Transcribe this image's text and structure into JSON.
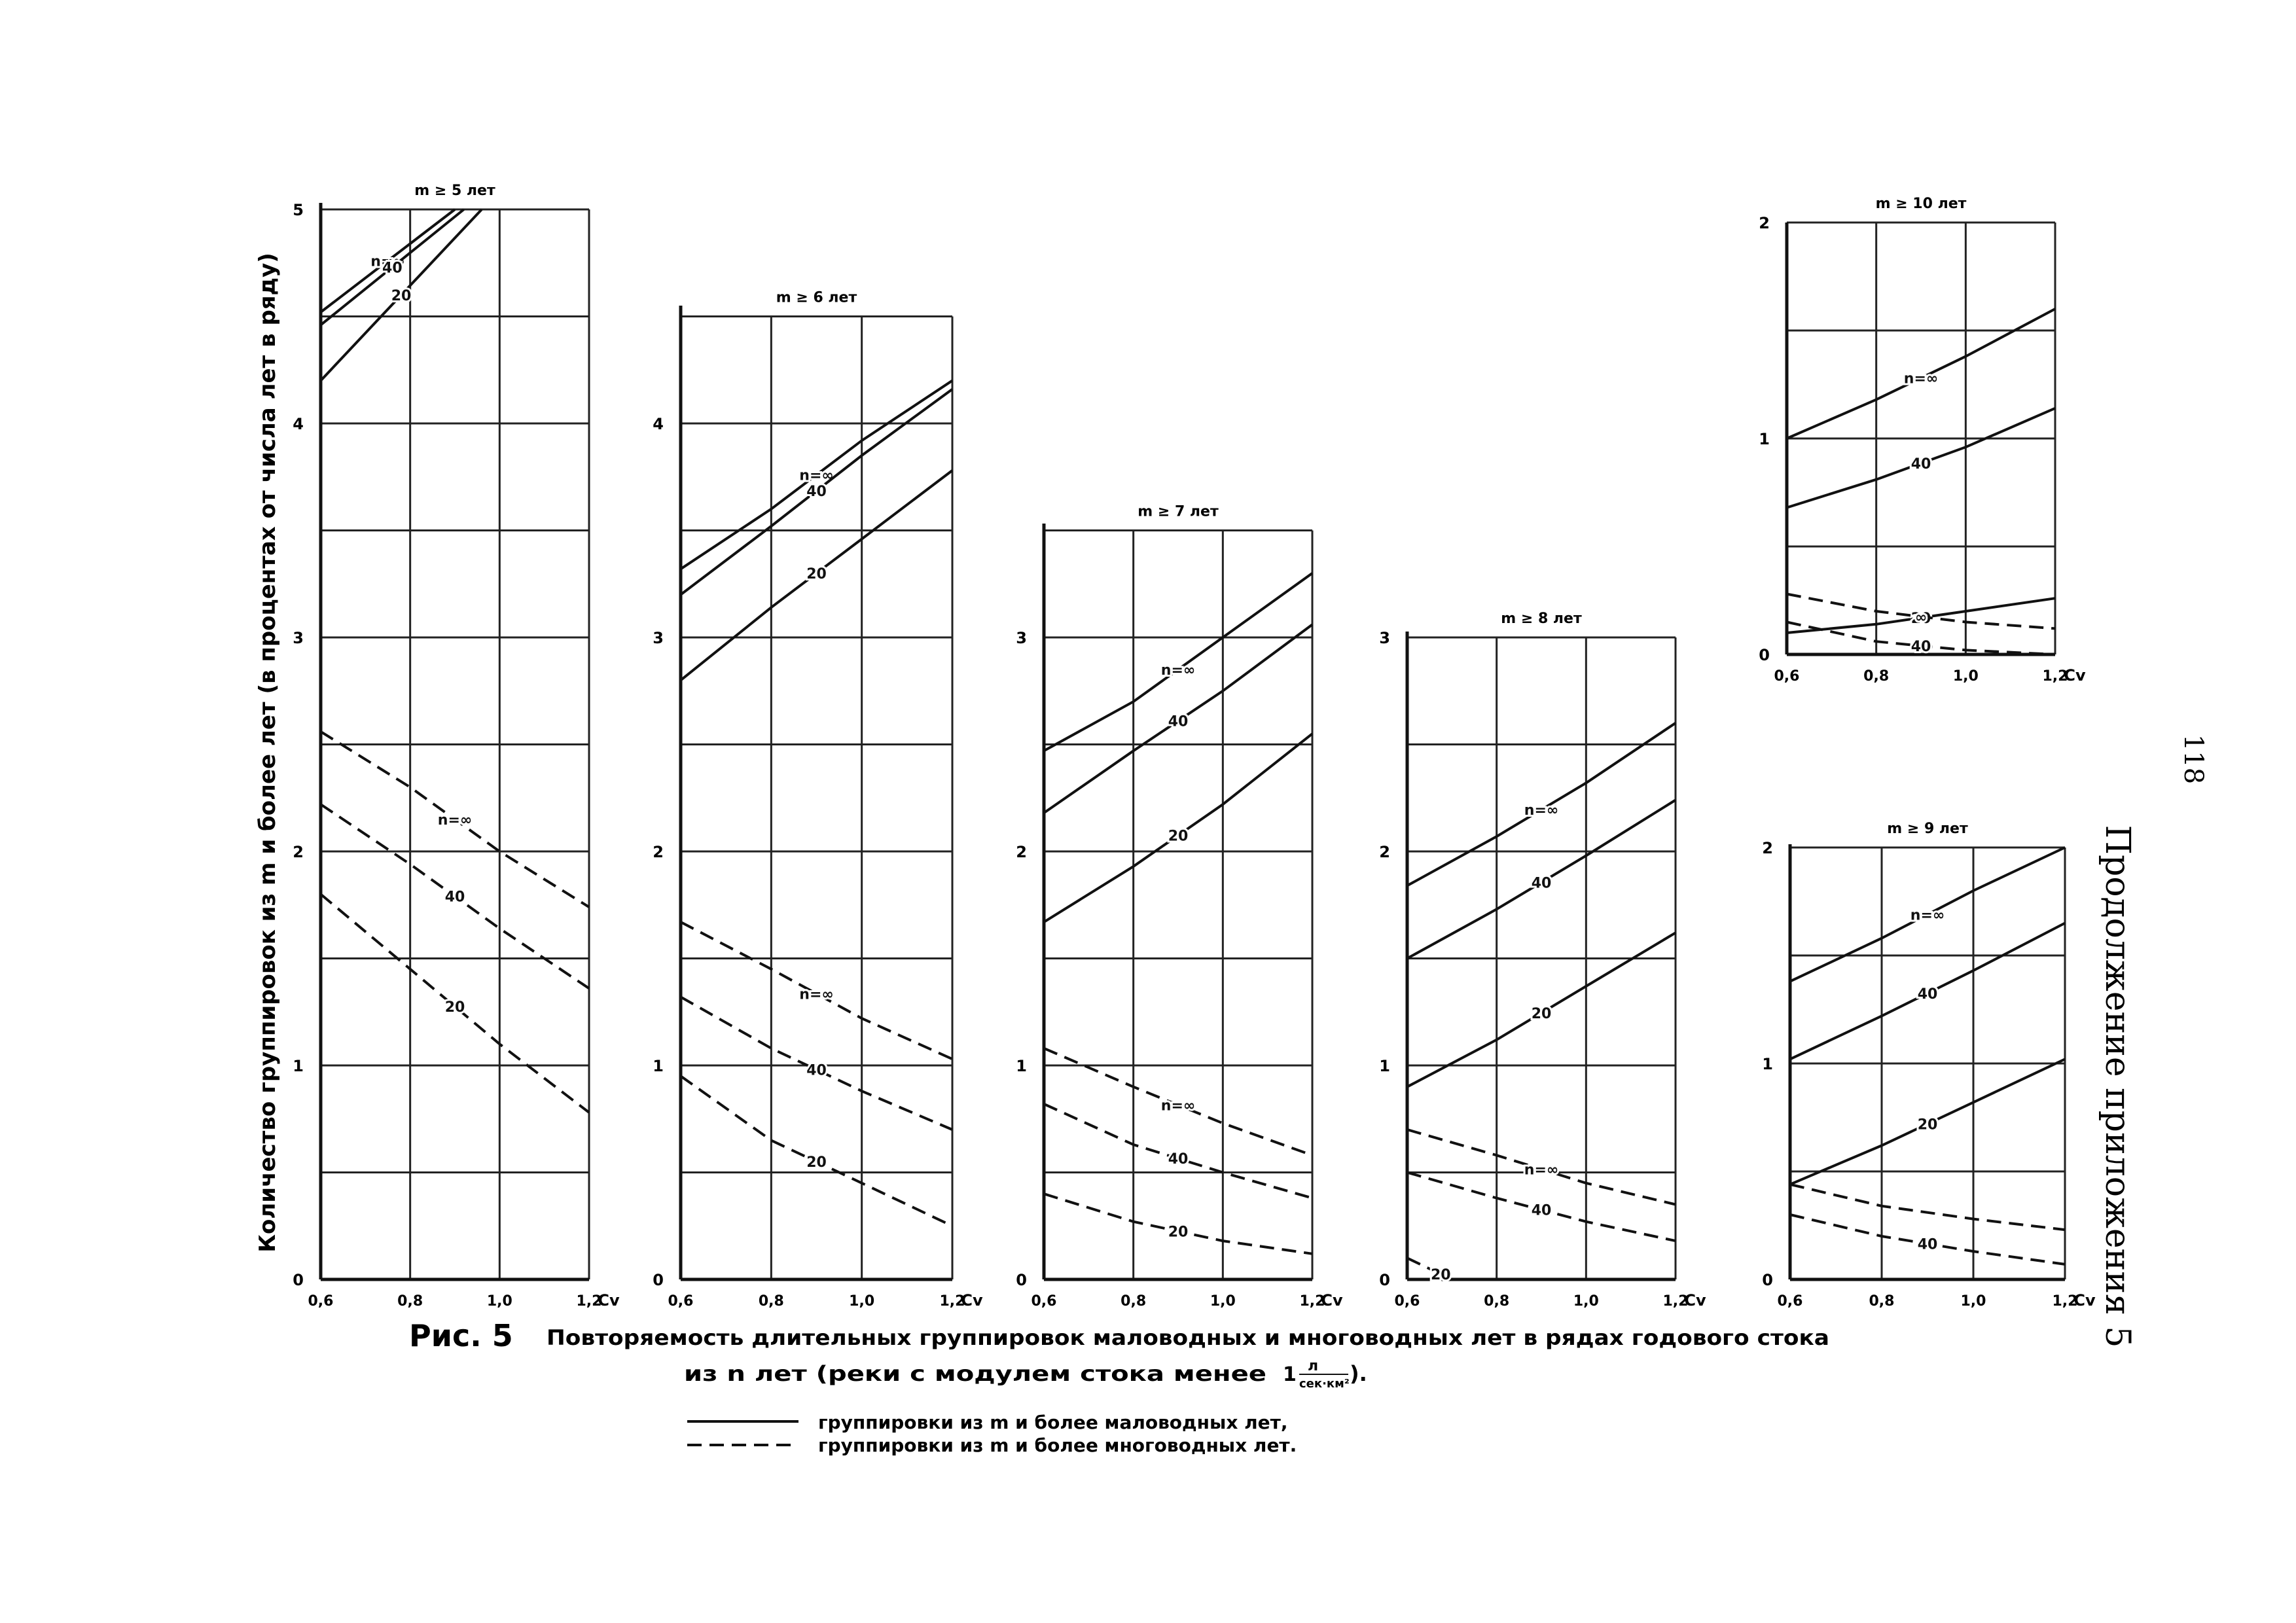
{
  "figure": {
    "label": "Рис. 5",
    "caption_line1": "Повторяемость длительных группировок маловодных и многоводных лет в рядах годового стока",
    "caption_line2": "из n лет (реки с модулем стока менее",
    "caption_unit_num": "л",
    "caption_unit_den": "сек·км²",
    "caption_unit_prefix": "1",
    "caption_tail": ").",
    "ylabel": "Количество группировок из m и более лет (в процентах от числа лет в ряду)",
    "legend": [
      {
        "style": "solid",
        "text": "группировки из m и более маловодных лет,"
      },
      {
        "style": "dashed",
        "text": "группировки из m и более многоводных лет."
      }
    ]
  },
  "side_text": {
    "page_number": "118",
    "running_title": "Продолжение приложения 5"
  },
  "chart_data": [
    {
      "type": "line",
      "title": "m ≥ 5 лет",
      "xlabel": "Cv",
      "x_ticks": [
        "0,6",
        "0,8",
        "1,0",
        "1,2"
      ],
      "xlim": [
        0.6,
        1.2
      ],
      "ylim": [
        0,
        5
      ],
      "y_tick_values": [
        0,
        1,
        2,
        3,
        4,
        5
      ],
      "y_ticks": [
        "0",
        "1",
        "2",
        "3",
        "4",
        "5"
      ],
      "grid": true,
      "series": [
        {
          "name": "n=∞",
          "style": "solid",
          "x": [
            0.6,
            0.9
          ],
          "y": [
            4.52,
            5.0
          ]
        },
        {
          "name": "40",
          "style": "solid",
          "x": [
            0.6,
            0.92
          ],
          "y": [
            4.46,
            5.0
          ]
        },
        {
          "name": "20",
          "style": "solid",
          "x": [
            0.6,
            0.96
          ],
          "y": [
            4.2,
            5.0
          ]
        },
        {
          "name": "n=∞",
          "style": "dashed",
          "x": [
            0.6,
            0.8,
            1.0,
            1.2
          ],
          "y": [
            2.56,
            2.3,
            2.0,
            1.74
          ]
        },
        {
          "name": "40",
          "style": "dashed",
          "x": [
            0.6,
            0.8,
            1.0,
            1.2
          ],
          "y": [
            2.22,
            1.94,
            1.64,
            1.36
          ]
        },
        {
          "name": "20",
          "style": "dashed",
          "x": [
            0.6,
            0.8,
            1.0,
            1.2
          ],
          "y": [
            1.8,
            1.45,
            1.1,
            0.78
          ]
        }
      ]
    },
    {
      "type": "line",
      "title": "m ≥ 6 лет",
      "xlabel": "Cv",
      "x_ticks": [
        "0,6",
        "0,8",
        "1,0",
        "1,2"
      ],
      "xlim": [
        0.6,
        1.2
      ],
      "ylim": [
        0,
        4.5
      ],
      "y_tick_values": [
        0,
        1,
        2,
        3,
        4
      ],
      "y_ticks": [
        "0",
        "1",
        "2",
        "3",
        "4"
      ],
      "grid": true,
      "series": [
        {
          "name": "n=∞",
          "style": "solid",
          "x": [
            0.6,
            0.8,
            1.0,
            1.2
          ],
          "y": [
            3.32,
            3.6,
            3.92,
            4.2
          ]
        },
        {
          "name": "40",
          "style": "solid",
          "x": [
            0.6,
            0.8,
            1.0,
            1.2
          ],
          "y": [
            3.2,
            3.52,
            3.85,
            4.16
          ]
        },
        {
          "name": "20",
          "style": "solid",
          "x": [
            0.6,
            0.8,
            1.0,
            1.2
          ],
          "y": [
            2.8,
            3.14,
            3.46,
            3.78
          ]
        },
        {
          "name": "n=∞",
          "style": "dashed",
          "x": [
            0.6,
            0.8,
            1.0,
            1.2
          ],
          "y": [
            1.67,
            1.45,
            1.22,
            1.03
          ]
        },
        {
          "name": "40",
          "style": "dashed",
          "x": [
            0.6,
            0.8,
            1.0,
            1.2
          ],
          "y": [
            1.32,
            1.08,
            0.88,
            0.7
          ]
        },
        {
          "name": "20",
          "style": "dashed",
          "x": [
            0.6,
            0.8,
            1.0,
            1.2
          ],
          "y": [
            0.95,
            0.65,
            0.45,
            0.25
          ]
        }
      ]
    },
    {
      "type": "line",
      "title": "m ≥ 7 лет",
      "xlabel": "Cv",
      "x_ticks": [
        "0,6",
        "0,8",
        "1,0",
        "1,2"
      ],
      "xlim": [
        0.6,
        1.2
      ],
      "ylim": [
        0,
        3.5
      ],
      "y_tick_values": [
        0,
        1,
        2,
        3
      ],
      "y_ticks": [
        "0",
        "1",
        "2",
        "3"
      ],
      "grid": true,
      "series": [
        {
          "name": "n=∞",
          "style": "solid",
          "x": [
            0.6,
            0.8,
            1.0,
            1.2
          ],
          "y": [
            2.47,
            2.7,
            3.0,
            3.3
          ]
        },
        {
          "name": "40",
          "style": "solid",
          "x": [
            0.6,
            0.8,
            1.0,
            1.2
          ],
          "y": [
            2.18,
            2.47,
            2.75,
            3.06
          ]
        },
        {
          "name": "20",
          "style": "solid",
          "x": [
            0.6,
            0.8,
            1.0,
            1.2
          ],
          "y": [
            1.67,
            1.93,
            2.22,
            2.55
          ]
        },
        {
          "name": "n=∞",
          "style": "dashed",
          "x": [
            0.6,
            0.8,
            1.0,
            1.2
          ],
          "y": [
            1.08,
            0.9,
            0.73,
            0.58
          ]
        },
        {
          "name": "40",
          "style": "dashed",
          "x": [
            0.6,
            0.8,
            1.0,
            1.2
          ],
          "y": [
            0.82,
            0.63,
            0.5,
            0.38
          ]
        },
        {
          "name": "20",
          "style": "dashed",
          "x": [
            0.6,
            0.8,
            1.0,
            1.2
          ],
          "y": [
            0.4,
            0.27,
            0.18,
            0.12
          ]
        }
      ]
    },
    {
      "type": "line",
      "title": "m ≥ 8 лет",
      "xlabel": "Cv",
      "x_ticks": [
        "0,6",
        "0,8",
        "1,0",
        "1,2"
      ],
      "xlim": [
        0.6,
        1.2
      ],
      "ylim": [
        0,
        3
      ],
      "y_tick_values": [
        0,
        1,
        2,
        3
      ],
      "y_ticks": [
        "0",
        "1",
        "2",
        "3"
      ],
      "grid": true,
      "series": [
        {
          "name": "n=∞",
          "style": "solid",
          "x": [
            0.6,
            0.8,
            1.0,
            1.2
          ],
          "y": [
            1.84,
            2.07,
            2.32,
            2.6
          ]
        },
        {
          "name": "40",
          "style": "solid",
          "x": [
            0.6,
            0.8,
            1.0,
            1.2
          ],
          "y": [
            1.5,
            1.73,
            1.98,
            2.24
          ]
        },
        {
          "name": "20",
          "style": "solid",
          "x": [
            0.6,
            0.8,
            1.0,
            1.2
          ],
          "y": [
            0.9,
            1.12,
            1.37,
            1.62
          ]
        },
        {
          "name": "n=∞",
          "style": "dashed",
          "x": [
            0.6,
            0.8,
            1.0,
            1.2
          ],
          "y": [
            0.7,
            0.58,
            0.45,
            0.35
          ]
        },
        {
          "name": "40",
          "style": "dashed",
          "x": [
            0.6,
            0.8,
            1.0,
            1.2
          ],
          "y": [
            0.5,
            0.38,
            0.27,
            0.18
          ]
        },
        {
          "name": "20",
          "style": "dashed",
          "x": [
            0.6,
            0.65,
            0.7
          ],
          "y": [
            0.1,
            0.05,
            0.0
          ]
        }
      ]
    },
    {
      "type": "line",
      "title": "m ≥ 10 лет",
      "xlabel": "Cv",
      "x_ticks": [
        "0,6",
        "0,8",
        "1,0",
        "1,2"
      ],
      "xlim": [
        0.6,
        1.2
      ],
      "ylim": [
        0,
        2
      ],
      "y_tick_values": [
        0,
        1,
        2
      ],
      "y_ticks": [
        "0",
        "1",
        "2"
      ],
      "grid": true,
      "series": [
        {
          "name": "n=∞",
          "style": "solid",
          "x": [
            0.6,
            0.8,
            1.0,
            1.2
          ],
          "y": [
            1.0,
            1.18,
            1.38,
            1.6
          ]
        },
        {
          "name": "40",
          "style": "solid",
          "x": [
            0.6,
            0.8,
            1.0,
            1.2
          ],
          "y": [
            0.68,
            0.81,
            0.96,
            1.14
          ]
        },
        {
          "name": "20",
          "style": "solid",
          "x": [
            0.6,
            0.8,
            1.0,
            1.2
          ],
          "y": [
            0.1,
            0.14,
            0.2,
            0.26
          ]
        },
        {
          "name": "∞",
          "style": "dashed",
          "x": [
            0.6,
            0.8,
            1.0,
            1.2
          ],
          "y": [
            0.28,
            0.2,
            0.15,
            0.12
          ]
        },
        {
          "name": "40",
          "style": "dashed",
          "x": [
            0.6,
            0.8,
            1.0,
            1.2
          ],
          "y": [
            0.15,
            0.06,
            0.02,
            0.0
          ]
        }
      ]
    },
    {
      "type": "line",
      "title": "m ≥ 9 лет",
      "xlabel": "Cv",
      "x_ticks": [
        "0,6",
        "0,8",
        "1,0",
        "1,2"
      ],
      "xlim": [
        0.6,
        1.2
      ],
      "ylim": [
        0,
        2
      ],
      "y_tick_values": [
        0,
        1,
        2
      ],
      "y_ticks": [
        "0",
        "1",
        "2"
      ],
      "grid": true,
      "series": [
        {
          "name": "n=∞",
          "style": "solid",
          "x": [
            0.6,
            0.8,
            1.0,
            1.2
          ],
          "y": [
            1.38,
            1.58,
            1.8,
            2.05
          ]
        },
        {
          "name": "40",
          "style": "solid",
          "x": [
            0.6,
            0.8,
            1.0,
            1.2
          ],
          "y": [
            1.02,
            1.22,
            1.43,
            1.65
          ]
        },
        {
          "name": "20",
          "style": "solid",
          "x": [
            0.6,
            0.8,
            1.0,
            1.2
          ],
          "y": [
            0.44,
            0.62,
            0.82,
            1.02
          ]
        },
        {
          "name": "",
          "style": "dashed",
          "x": [
            0.6,
            0.8,
            1.0,
            1.2
          ],
          "y": [
            0.44,
            0.34,
            0.28,
            0.23
          ]
        },
        {
          "name": "40",
          "style": "dashed",
          "x": [
            0.6,
            0.8,
            1.0,
            1.2
          ],
          "y": [
            0.3,
            0.2,
            0.13,
            0.07
          ]
        }
      ]
    }
  ]
}
